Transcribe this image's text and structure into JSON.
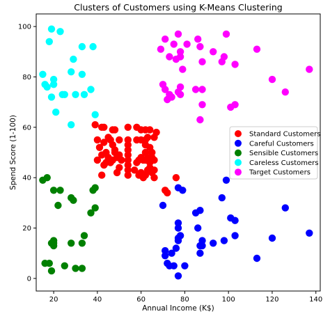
{
  "chart_data": {
    "type": "scatter",
    "title": "Clusters of Customers using K-Means Clustering",
    "xlabel": "Annual Income (K$)",
    "ylabel": "Spend Score (1-100)",
    "xlim": [
      12,
      142
    ],
    "ylim": [
      -5,
      105
    ],
    "xticks": [
      20,
      40,
      60,
      80,
      100,
      120,
      140
    ],
    "yticks": [
      0,
      20,
      40,
      60,
      80,
      100
    ],
    "grid": false,
    "legend_position": "center-right",
    "series": [
      {
        "name": "Standard Customers",
        "color": "#ff0000",
        "points": [
          [
            39,
            61
          ],
          [
            40,
            55
          ],
          [
            42,
            60
          ],
          [
            43,
            60
          ],
          [
            47,
            59
          ],
          [
            48,
            59
          ],
          [
            54,
            60
          ],
          [
            58,
            60
          ],
          [
            60,
            59
          ],
          [
            62,
            59
          ],
          [
            64,
            59
          ],
          [
            67,
            58
          ],
          [
            41,
            52
          ],
          [
            43,
            54
          ],
          [
            45,
            56
          ],
          [
            46,
            55
          ],
          [
            47,
            53
          ],
          [
            48,
            51
          ],
          [
            50,
            55
          ],
          [
            54,
            55
          ],
          [
            54,
            53
          ],
          [
            54,
            51
          ],
          [
            58,
            55
          ],
          [
            60,
            55
          ],
          [
            62,
            55
          ],
          [
            62,
            53
          ],
          [
            63,
            56
          ],
          [
            64,
            52
          ],
          [
            65,
            50
          ],
          [
            66,
            56
          ],
          [
            40,
            47
          ],
          [
            42,
            49
          ],
          [
            44,
            50
          ],
          [
            45,
            48
          ],
          [
            47,
            47
          ],
          [
            48,
            50
          ],
          [
            49,
            48
          ],
          [
            50,
            49
          ],
          [
            51,
            47
          ],
          [
            54,
            47
          ],
          [
            54,
            45
          ],
          [
            54,
            49
          ],
          [
            58,
            46
          ],
          [
            59,
            47
          ],
          [
            60,
            48
          ],
          [
            61,
            47
          ],
          [
            62,
            50
          ],
          [
            62,
            47
          ],
          [
            63,
            48
          ],
          [
            64,
            46
          ],
          [
            65,
            48
          ],
          [
            66,
            47
          ],
          [
            43,
            45
          ],
          [
            44,
            46
          ],
          [
            46,
            46
          ],
          [
            49,
            42
          ],
          [
            50,
            44
          ],
          [
            54,
            43
          ],
          [
            54,
            41
          ],
          [
            57,
            43
          ],
          [
            59,
            41
          ],
          [
            60,
            42
          ],
          [
            61,
            40
          ],
          [
            62,
            41
          ],
          [
            63,
            43
          ],
          [
            64,
            44
          ],
          [
            65,
            42
          ],
          [
            66,
            43
          ],
          [
            42,
            41
          ],
          [
            66,
            40
          ],
          [
            71,
            35
          ],
          [
            72,
            34
          ],
          [
            76,
            40
          ]
        ]
      },
      {
        "name": "Careful Customers",
        "color": "#0000ff",
        "points": [
          [
            70,
            29
          ],
          [
            71,
            11
          ],
          [
            71,
            9
          ],
          [
            72,
            6
          ],
          [
            73,
            5
          ],
          [
            74,
            10
          ],
          [
            75,
            5
          ],
          [
            76,
            12
          ],
          [
            77,
            36
          ],
          [
            77,
            20
          ],
          [
            77,
            22
          ],
          [
            77,
            16
          ],
          [
            77,
            15
          ],
          [
            77,
            1
          ],
          [
            78,
            17
          ],
          [
            79,
            35
          ],
          [
            80,
            5
          ],
          [
            85,
            26
          ],
          [
            86,
            20
          ],
          [
            87,
            27
          ],
          [
            87,
            13
          ],
          [
            87,
            10
          ],
          [
            88,
            15
          ],
          [
            88,
            13
          ],
          [
            93,
            14
          ],
          [
            97,
            32
          ],
          [
            98,
            15
          ],
          [
            99,
            39
          ],
          [
            101,
            24
          ],
          [
            103,
            23
          ],
          [
            103,
            17
          ],
          [
            113,
            8
          ],
          [
            120,
            16
          ],
          [
            126,
            28
          ],
          [
            137,
            18
          ]
        ]
      },
      {
        "name": "Sensible Customers",
        "color": "#008000",
        "points": [
          [
            15,
            39
          ],
          [
            16,
            6
          ],
          [
            17,
            40
          ],
          [
            18,
            6
          ],
          [
            19,
            3
          ],
          [
            19,
            14
          ],
          [
            20,
            15
          ],
          [
            20,
            13
          ],
          [
            20,
            14
          ],
          [
            20,
            35
          ],
          [
            22,
            29
          ],
          [
            23,
            35
          ],
          [
            25,
            5
          ],
          [
            28,
            14
          ],
          [
            28,
            32
          ],
          [
            29,
            31
          ],
          [
            30,
            4
          ],
          [
            33,
            4
          ],
          [
            33,
            14
          ],
          [
            34,
            17
          ],
          [
            37,
            26
          ],
          [
            38,
            35
          ],
          [
            39,
            36
          ],
          [
            39,
            28
          ]
        ]
      },
      {
        "name": "Careless Customers",
        "color": "#00ffff",
        "points": [
          [
            15,
            81
          ],
          [
            16,
            77
          ],
          [
            17,
            76
          ],
          [
            18,
            94
          ],
          [
            19,
            72
          ],
          [
            19,
            99
          ],
          [
            20,
            77
          ],
          [
            20,
            79
          ],
          [
            21,
            66
          ],
          [
            23,
            98
          ],
          [
            24,
            73
          ],
          [
            25,
            73
          ],
          [
            28,
            61
          ],
          [
            28,
            82
          ],
          [
            29,
            87
          ],
          [
            30,
            73
          ],
          [
            33,
            81
          ],
          [
            33,
            92
          ],
          [
            34,
            73
          ],
          [
            37,
            75
          ],
          [
            38,
            92
          ],
          [
            39,
            65
          ]
        ]
      },
      {
        "name": "Target Customers",
        "color": "#ff00ff",
        "points": [
          [
            69,
            91
          ],
          [
            70,
            77
          ],
          [
            71,
            95
          ],
          [
            71,
            75
          ],
          [
            72,
            71
          ],
          [
            73,
            88
          ],
          [
            73,
            73
          ],
          [
            74,
            72
          ],
          [
            75,
            93
          ],
          [
            76,
            87
          ],
          [
            77,
            97
          ],
          [
            77,
            74
          ],
          [
            78,
            90
          ],
          [
            78,
            88
          ],
          [
            78,
            76
          ],
          [
            78,
            73
          ],
          [
            79,
            83
          ],
          [
            81,
            93
          ],
          [
            85,
            75
          ],
          [
            86,
            95
          ],
          [
            87,
            92
          ],
          [
            87,
            63
          ],
          [
            88,
            86
          ],
          [
            88,
            69
          ],
          [
            88,
            75
          ],
          [
            93,
            90
          ],
          [
            97,
            86
          ],
          [
            98,
            88
          ],
          [
            99,
            97
          ],
          [
            101,
            68
          ],
          [
            103,
            85
          ],
          [
            103,
            69
          ],
          [
            113,
            91
          ],
          [
            120,
            79
          ],
          [
            126,
            74
          ],
          [
            137,
            83
          ]
        ]
      }
    ]
  }
}
